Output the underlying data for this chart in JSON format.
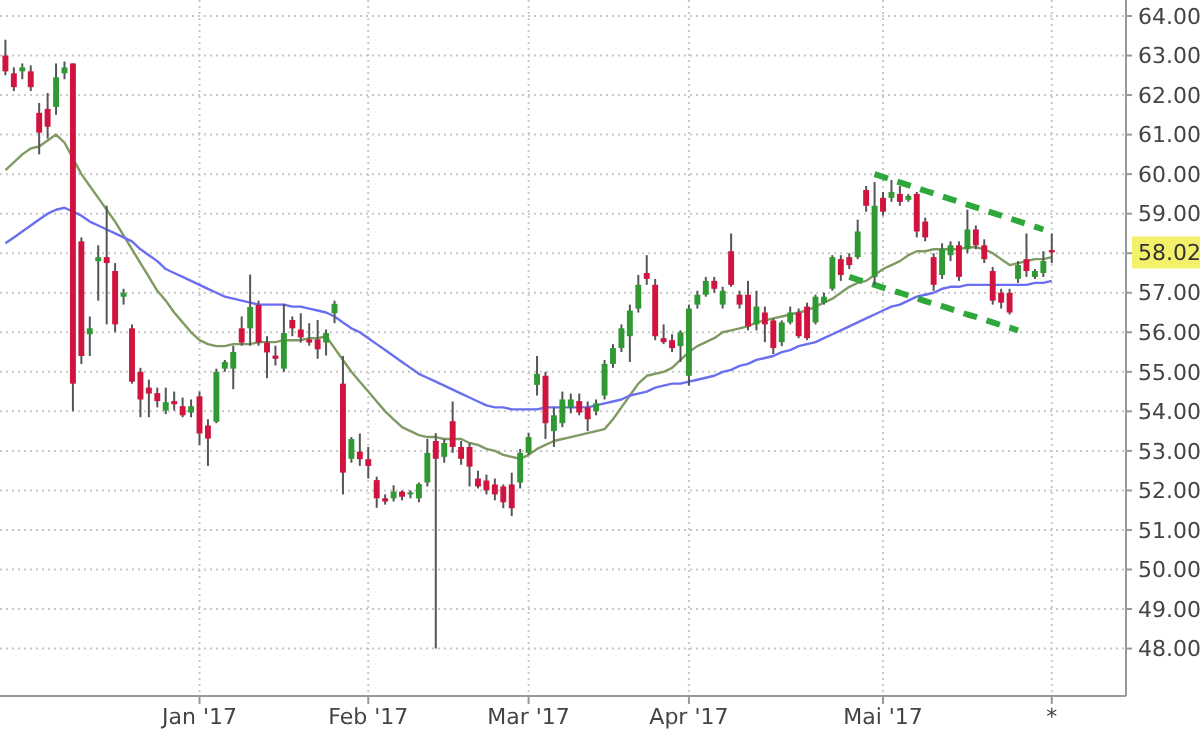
{
  "chart_data": {
    "type": "candlestick",
    "categories": [
      null,
      null,
      null,
      null,
      null,
      null,
      null,
      null,
      null,
      null,
      null,
      null,
      null,
      null,
      null,
      null,
      null,
      null,
      null,
      null,
      null,
      null,
      null,
      "Jan '17",
      null,
      null,
      null,
      null,
      null,
      null,
      null,
      null,
      null,
      null,
      null,
      null,
      null,
      null,
      null,
      null,
      null,
      null,
      null,
      "Feb '17",
      null,
      null,
      null,
      null,
      null,
      null,
      null,
      null,
      null,
      null,
      null,
      null,
      null,
      null,
      null,
      null,
      null,
      null,
      "Mar '17",
      null,
      null,
      null,
      null,
      null,
      null,
      null,
      null,
      null,
      null,
      null,
      null,
      null,
      null,
      null,
      null,
      null,
      null,
      "Apr '17",
      null,
      null,
      null,
      null,
      null,
      null,
      null,
      null,
      null,
      null,
      null,
      null,
      null,
      null,
      null,
      null,
      null,
      null,
      null,
      null,
      null,
      null,
      "Mai '17",
      null,
      null,
      null,
      null,
      null,
      null,
      null,
      null,
      null,
      null,
      null,
      null,
      null,
      null,
      null,
      null,
      null,
      null,
      null,
      "*"
    ],
    "ohlc": [
      [
        63.0,
        63.4,
        62.5,
        62.6
      ],
      [
        62.55,
        62.7,
        62.1,
        62.2
      ],
      [
        62.6,
        62.8,
        62.4,
        62.7
      ],
      [
        62.6,
        62.75,
        62.1,
        62.2
      ],
      [
        61.55,
        61.8,
        60.5,
        61.05
      ],
      [
        61.65,
        62.05,
        60.9,
        61.2
      ],
      [
        61.7,
        62.8,
        61.5,
        62.45
      ],
      [
        62.55,
        62.85,
        62.4,
        62.7
      ],
      [
        62.8,
        62.8,
        54.0,
        54.7
      ],
      [
        58.3,
        58.4,
        55.2,
        55.4
      ],
      [
        55.95,
        56.4,
        55.4,
        56.1
      ],
      [
        57.8,
        58.2,
        56.8,
        57.9
      ],
      [
        57.9,
        59.2,
        56.2,
        57.75
      ],
      [
        57.55,
        57.75,
        56.0,
        56.2
      ],
      [
        56.9,
        57.1,
        56.7,
        57.0
      ],
      [
        56.1,
        56.2,
        54.7,
        54.75
      ],
      [
        55.0,
        55.1,
        53.85,
        54.3
      ],
      [
        54.6,
        54.8,
        53.85,
        54.45
      ],
      [
        54.46,
        54.6,
        54.1,
        54.26
      ],
      [
        54.02,
        54.6,
        53.93,
        54.23
      ],
      [
        54.26,
        54.5,
        54.02,
        54.18
      ],
      [
        54.13,
        54.35,
        53.85,
        53.9
      ],
      [
        53.97,
        54.3,
        53.85,
        54.13
      ],
      [
        54.38,
        54.5,
        53.15,
        53.44
      ],
      [
        53.64,
        53.8,
        52.62,
        53.31
      ],
      [
        53.74,
        55.08,
        53.7,
        55.0
      ],
      [
        55.08,
        55.3,
        55.0,
        55.25
      ],
      [
        55.08,
        55.66,
        54.56,
        55.5
      ],
      [
        56.1,
        56.4,
        55.66,
        55.74
      ],
      [
        56.1,
        57.46,
        55.66,
        56.64
      ],
      [
        56.69,
        56.8,
        55.66,
        55.74
      ],
      [
        55.74,
        55.9,
        54.84,
        55.49
      ],
      [
        55.41,
        55.66,
        55.16,
        55.33
      ],
      [
        55.08,
        56.72,
        55.0,
        55.98
      ],
      [
        56.31,
        56.4,
        55.9,
        56.1
      ],
      [
        56.07,
        56.48,
        55.74,
        55.87
      ],
      [
        55.82,
        56.23,
        55.66,
        55.74
      ],
      [
        55.82,
        56.31,
        55.33,
        55.57
      ],
      [
        55.74,
        56.07,
        55.41,
        55.98
      ],
      [
        56.48,
        56.8,
        56.23,
        56.72
      ],
      [
        54.7,
        55.4,
        51.9,
        52.45
      ],
      [
        52.8,
        53.35,
        52.7,
        53.3
      ],
      [
        52.98,
        53.44,
        52.62,
        52.79
      ],
      [
        52.79,
        53.1,
        52.3,
        52.62
      ],
      [
        52.26,
        52.35,
        51.56,
        51.8
      ],
      [
        51.8,
        51.9,
        51.64,
        51.72
      ],
      [
        51.8,
        52.13,
        51.72,
        51.97
      ],
      [
        51.97,
        52.0,
        51.75,
        51.84
      ],
      [
        51.9,
        52.0,
        51.8,
        51.95
      ],
      [
        51.8,
        52.2,
        51.7,
        52.16
      ],
      [
        52.2,
        53.3,
        52.1,
        52.95
      ],
      [
        53.25,
        53.45,
        48.0,
        52.8
      ],
      [
        52.85,
        53.3,
        52.7,
        53.2
      ],
      [
        53.75,
        54.25,
        52.95,
        53.1
      ],
      [
        53.1,
        53.25,
        52.65,
        52.8
      ],
      [
        53.1,
        53.2,
        52.1,
        52.6
      ],
      [
        52.3,
        52.5,
        52.05,
        52.1
      ],
      [
        52.25,
        52.4,
        51.9,
        52.0
      ],
      [
        52.15,
        52.3,
        51.75,
        51.9
      ],
      [
        52.1,
        52.15,
        51.55,
        51.7
      ],
      [
        52.15,
        52.45,
        51.35,
        51.55
      ],
      [
        52.2,
        53.05,
        52.05,
        52.95
      ],
      [
        52.95,
        53.45,
        52.9,
        53.35
      ],
      [
        54.67,
        55.4,
        54.4,
        54.95
      ],
      [
        54.9,
        55.0,
        53.3,
        53.7
      ],
      [
        53.5,
        54.1,
        53.1,
        53.9
      ],
      [
        53.7,
        54.5,
        53.6,
        54.3
      ],
      [
        54.1,
        54.45,
        53.95,
        54.3
      ],
      [
        54.26,
        54.45,
        53.9,
        53.97
      ],
      [
        54.1,
        54.25,
        53.5,
        53.8
      ],
      [
        54.0,
        54.3,
        53.9,
        54.2
      ],
      [
        54.4,
        55.3,
        54.3,
        55.2
      ],
      [
        55.2,
        55.7,
        55.1,
        55.6
      ],
      [
        55.6,
        56.2,
        55.5,
        56.1
      ],
      [
        55.9,
        56.7,
        55.25,
        56.55
      ],
      [
        56.6,
        57.45,
        56.5,
        57.2
      ],
      [
        57.5,
        57.95,
        57.2,
        57.35
      ],
      [
        57.2,
        57.35,
        55.8,
        55.9
      ],
      [
        55.85,
        56.2,
        55.7,
        55.75
      ],
      [
        55.8,
        55.95,
        55.5,
        55.6
      ],
      [
        55.65,
        56.05,
        55.25,
        56.0
      ],
      [
        54.9,
        56.7,
        54.65,
        56.6
      ],
      [
        56.7,
        57.05,
        56.6,
        56.95
      ],
      [
        56.95,
        57.4,
        56.9,
        57.3
      ],
      [
        57.3,
        57.4,
        57.0,
        57.1
      ],
      [
        56.7,
        57.15,
        56.6,
        57.05
      ],
      [
        58.05,
        58.5,
        57.15,
        57.2
      ],
      [
        56.95,
        57.05,
        56.6,
        56.7
      ],
      [
        56.95,
        57.3,
        56.05,
        56.15
      ],
      [
        56.2,
        57.05,
        56.05,
        56.65
      ],
      [
        56.5,
        56.65,
        55.75,
        56.2
      ],
      [
        56.3,
        56.35,
        55.45,
        55.6
      ],
      [
        55.75,
        56.3,
        55.65,
        56.25
      ],
      [
        56.25,
        56.65,
        56.2,
        56.5
      ],
      [
        56.5,
        56.6,
        55.85,
        55.9
      ],
      [
        56.65,
        56.75,
        55.8,
        55.85
      ],
      [
        56.25,
        56.95,
        56.2,
        56.9
      ],
      [
        56.75,
        57.0,
        56.7,
        56.9
      ],
      [
        57.1,
        57.95,
        57.05,
        57.9
      ],
      [
        57.85,
        57.95,
        57.3,
        57.45
      ],
      [
        57.9,
        58.0,
        57.6,
        57.7
      ],
      [
        57.9,
        58.85,
        57.85,
        58.55
      ],
      [
        59.6,
        59.7,
        59.05,
        59.2
      ],
      [
        57.4,
        59.8,
        57.2,
        59.2
      ],
      [
        59.4,
        59.55,
        58.95,
        59.05
      ],
      [
        59.4,
        59.85,
        59.3,
        59.55
      ],
      [
        59.5,
        59.7,
        59.2,
        59.3
      ],
      [
        59.35,
        59.5,
        59.3,
        59.45
      ],
      [
        59.5,
        59.55,
        58.4,
        58.55
      ],
      [
        58.8,
        58.9,
        58.3,
        58.4
      ],
      [
        57.9,
        58.0,
        57.05,
        57.2
      ],
      [
        57.45,
        58.25,
        57.35,
        58.1
      ],
      [
        57.95,
        58.3,
        57.8,
        58.2
      ],
      [
        58.2,
        58.3,
        57.3,
        57.4
      ],
      [
        58.1,
        59.1,
        58.0,
        58.6
      ],
      [
        58.6,
        58.7,
        58.1,
        58.2
      ],
      [
        58.2,
        58.35,
        57.75,
        57.85
      ],
      [
        57.55,
        57.65,
        56.7,
        56.8
      ],
      [
        57.0,
        57.1,
        56.6,
        56.75
      ],
      [
        57.0,
        57.1,
        56.45,
        56.5
      ],
      [
        57.35,
        57.8,
        57.25,
        57.7
      ],
      [
        57.85,
        58.5,
        57.4,
        57.55
      ],
      [
        57.4,
        57.6,
        57.35,
        57.55
      ],
      [
        57.5,
        58.05,
        57.4,
        57.8
      ],
      [
        58.08,
        58.5,
        57.75,
        58.02
      ]
    ],
    "series": [
      {
        "type": "line",
        "color": "#7f9b62",
        "values": [
          60.1,
          60.3,
          60.5,
          60.65,
          60.7,
          60.85,
          61.0,
          60.8,
          60.4,
          60.0,
          59.7,
          59.4,
          59.1,
          58.8,
          58.45,
          58.1,
          57.75,
          57.4,
          57.05,
          56.8,
          56.5,
          56.25,
          56.0,
          55.8,
          55.7,
          55.65,
          55.65,
          55.7,
          55.7,
          55.7,
          55.75,
          55.75,
          55.75,
          55.8,
          55.8,
          55.8,
          55.85,
          55.85,
          55.9,
          55.6,
          55.3,
          55.0,
          54.75,
          54.5,
          54.25,
          54.0,
          53.8,
          53.6,
          53.5,
          53.4,
          53.35,
          53.35,
          53.3,
          53.3,
          53.3,
          53.2,
          53.15,
          53.05,
          53.0,
          52.9,
          52.85,
          52.8,
          52.9,
          53.05,
          53.15,
          53.25,
          53.3,
          53.35,
          53.4,
          53.45,
          53.5,
          53.55,
          53.8,
          54.1,
          54.4,
          54.7,
          54.9,
          54.95,
          55.0,
          55.1,
          55.3,
          55.5,
          55.65,
          55.75,
          55.85,
          56.0,
          56.05,
          56.1,
          56.15,
          56.25,
          56.3,
          56.35,
          56.4,
          56.45,
          56.5,
          56.55,
          56.65,
          56.75,
          56.85,
          57.0,
          57.15,
          57.25,
          57.3,
          57.45,
          57.6,
          57.7,
          57.8,
          57.95,
          58.05,
          58.05,
          58.1,
          58.1,
          58.1,
          58.1,
          58.15,
          58.15,
          58.1,
          58.0,
          57.85,
          57.7,
          57.75,
          57.8,
          57.85,
          57.85,
          57.9
        ]
      },
      {
        "type": "line",
        "color": "#6a6ef0",
        "values": [
          58.25,
          58.4,
          58.55,
          58.7,
          58.85,
          59.0,
          59.1,
          59.15,
          59.05,
          58.95,
          58.8,
          58.7,
          58.6,
          58.5,
          58.4,
          58.3,
          58.1,
          57.95,
          57.8,
          57.6,
          57.5,
          57.4,
          57.3,
          57.2,
          57.1,
          57.0,
          56.9,
          56.85,
          56.8,
          56.75,
          56.7,
          56.7,
          56.7,
          56.7,
          56.65,
          56.65,
          56.6,
          56.55,
          56.5,
          56.4,
          56.25,
          56.1,
          56.0,
          55.85,
          55.7,
          55.55,
          55.4,
          55.25,
          55.1,
          54.95,
          54.85,
          54.75,
          54.65,
          54.55,
          54.45,
          54.35,
          54.25,
          54.15,
          54.1,
          54.1,
          54.05,
          54.05,
          54.05,
          54.05,
          54.1,
          54.1,
          54.1,
          54.1,
          54.1,
          54.1,
          54.15,
          54.2,
          54.25,
          54.3,
          54.4,
          54.45,
          54.5,
          54.6,
          54.65,
          54.7,
          54.7,
          54.75,
          54.8,
          54.85,
          54.9,
          55.0,
          55.05,
          55.15,
          55.2,
          55.3,
          55.35,
          55.4,
          55.5,
          55.55,
          55.65,
          55.7,
          55.75,
          55.85,
          55.95,
          56.05,
          56.15,
          56.25,
          56.35,
          56.45,
          56.55,
          56.65,
          56.7,
          56.8,
          56.9,
          56.95,
          57.0,
          57.1,
          57.15,
          57.15,
          57.2,
          57.2,
          57.2,
          57.2,
          57.2,
          57.2,
          57.2,
          57.2,
          57.25,
          57.25,
          57.3
        ]
      },
      {
        "type": "line",
        "color": "#2ea83a",
        "line_style": "dashed",
        "values": [
          null,
          null,
          null,
          null,
          null,
          null,
          null,
          null,
          null,
          null,
          null,
          null,
          null,
          null,
          null,
          null,
          null,
          null,
          null,
          null,
          null,
          null,
          null,
          null,
          null,
          null,
          null,
          null,
          null,
          null,
          null,
          null,
          null,
          null,
          null,
          null,
          null,
          null,
          null,
          null,
          null,
          null,
          null,
          null,
          null,
          null,
          null,
          null,
          null,
          null,
          null,
          null,
          null,
          null,
          null,
          null,
          null,
          null,
          null,
          null,
          null,
          null,
          null,
          null,
          null,
          null,
          null,
          null,
          null,
          null,
          null,
          null,
          null,
          null,
          null,
          null,
          null,
          null,
          null,
          null,
          null,
          null,
          null,
          null,
          null,
          null,
          null,
          null,
          null,
          null,
          null,
          null,
          null,
          null,
          null,
          null,
          null,
          null,
          null,
          null,
          null,
          null,
          null,
          60.0,
          59.93,
          59.86,
          59.79,
          59.72,
          59.65,
          59.58,
          59.51,
          59.44,
          59.37,
          59.3,
          59.23,
          59.16,
          59.09,
          59.02,
          58.95,
          58.88,
          58.81,
          58.74,
          58.67,
          58.6,
          null
        ]
      },
      {
        "type": "line",
        "color": "#2ea83a",
        "line_style": "dashed",
        "values": [
          null,
          null,
          null,
          null,
          null,
          null,
          null,
          null,
          null,
          null,
          null,
          null,
          null,
          null,
          null,
          null,
          null,
          null,
          null,
          null,
          null,
          null,
          null,
          null,
          null,
          null,
          null,
          null,
          null,
          null,
          null,
          null,
          null,
          null,
          null,
          null,
          null,
          null,
          null,
          null,
          null,
          null,
          null,
          null,
          null,
          null,
          null,
          null,
          null,
          null,
          null,
          null,
          null,
          null,
          null,
          null,
          null,
          null,
          null,
          null,
          null,
          null,
          null,
          null,
          null,
          null,
          null,
          null,
          null,
          null,
          null,
          null,
          null,
          null,
          null,
          null,
          null,
          null,
          null,
          null,
          null,
          null,
          null,
          null,
          null,
          null,
          null,
          null,
          null,
          null,
          null,
          null,
          null,
          null,
          null,
          null,
          null,
          null,
          null,
          null,
          57.4,
          57.33,
          57.27,
          57.2,
          57.13,
          57.06,
          57.0,
          56.93,
          56.86,
          56.79,
          56.72,
          56.66,
          56.59,
          56.52,
          56.45,
          56.39,
          56.32,
          56.25,
          56.18,
          56.12,
          56.05,
          null,
          null,
          null,
          null
        ]
      }
    ],
    "ylim": [
      46.8,
      64.0
    ],
    "yticks": [
      {
        "value": 48,
        "label": "48.00"
      },
      {
        "value": 49,
        "label": "49.00"
      },
      {
        "value": 50,
        "label": "50.00"
      },
      {
        "value": 51,
        "label": "51.00"
      },
      {
        "value": 52,
        "label": "52.00"
      },
      {
        "value": 53,
        "label": "53.00"
      },
      {
        "value": 54,
        "label": "54.00"
      },
      {
        "value": 55,
        "label": "55.00"
      },
      {
        "value": 56,
        "label": "56.00"
      },
      {
        "value": 57,
        "label": "57.00"
      },
      {
        "value": 58,
        "label": null
      },
      {
        "value": 59,
        "label": "59.00"
      },
      {
        "value": 60,
        "label": "60.00"
      },
      {
        "value": 61,
        "label": "61.00"
      },
      {
        "value": 62,
        "label": "62.00"
      },
      {
        "value": 63,
        "label": "63.00"
      },
      {
        "value": 64,
        "label": "64.00"
      }
    ],
    "grid": true,
    "annotations": [
      "58.02"
    ]
  }
}
